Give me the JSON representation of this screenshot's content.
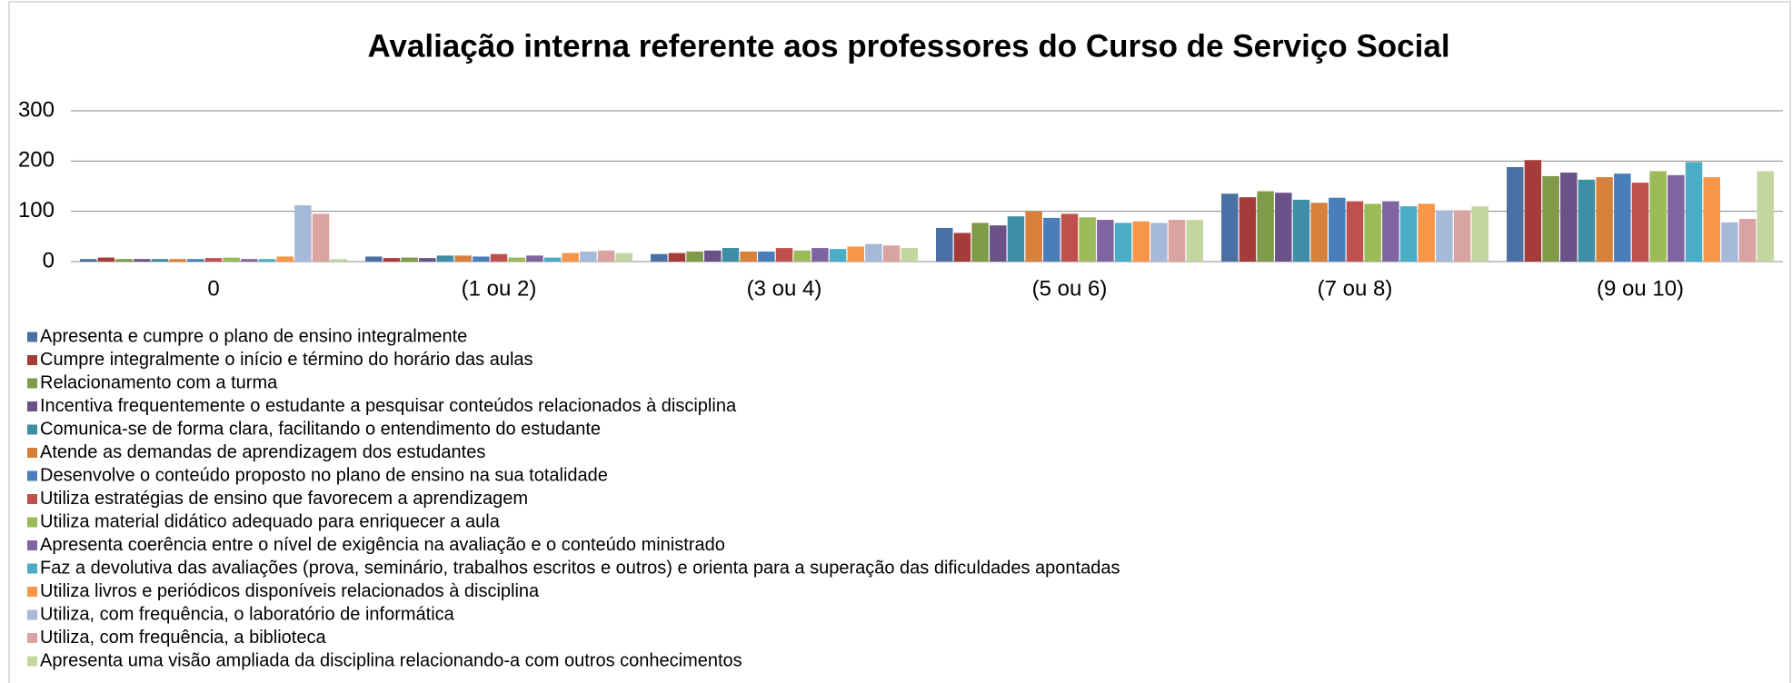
{
  "chart_data": {
    "type": "bar",
    "title": "Avaliação interna referente aos professores do Curso de Serviço Social",
    "categories": [
      "0",
      "(1 ou 2)",
      "(3 ou 4)",
      "(5 ou 6)",
      "(7 ou 8)",
      "(9 ou 10)"
    ],
    "ylim": [
      0,
      300
    ],
    "yticks": [
      0,
      100,
      200,
      300
    ],
    "grid": true,
    "legend": "bottom",
    "series": [
      {
        "name": "Apresenta e cumpre o plano de ensino integralmente",
        "color": "#4a6fa5",
        "values": [
          5,
          10,
          15,
          67,
          135,
          188
        ]
      },
      {
        "name": "Cumpre integralmente o início e término do horário das aulas",
        "color": "#a63c3a",
        "values": [
          8,
          7,
          17,
          57,
          128,
          202
        ]
      },
      {
        "name": "Relacionamento com a turma",
        "color": "#7f9a48",
        "values": [
          5,
          8,
          20,
          77,
          140,
          170
        ]
      },
      {
        "name": "Incentiva frequentemente o estudante a pesquisar conteúdos relacionados à disciplina",
        "color": "#6a5288",
        "values": [
          5,
          7,
          22,
          72,
          137,
          177
        ]
      },
      {
        "name": "Comunica-se de forma clara, facilitando o entendimento do estudante",
        "color": "#3d8ea6",
        "values": [
          5,
          12,
          27,
          90,
          123,
          163
        ]
      },
      {
        "name": "Atende as demandas de aprendizagem dos estudantes",
        "color": "#d6803a",
        "values": [
          5,
          12,
          20,
          100,
          117,
          168
        ]
      },
      {
        "name": "Desenvolve o conteúdo proposto no plano de ensino na sua totalidade",
        "color": "#4a7ebb",
        "values": [
          5,
          10,
          20,
          87,
          127,
          175
        ]
      },
      {
        "name": "Utiliza estratégias de ensino que favorecem a aprendizagem",
        "color": "#c0504d",
        "values": [
          7,
          15,
          27,
          95,
          120,
          157
        ]
      },
      {
        "name": "Utiliza material didático adequado para enriquecer a aula",
        "color": "#9bbb59",
        "values": [
          8,
          8,
          22,
          88,
          115,
          180
        ]
      },
      {
        "name": "Apresenta coerência entre o nível de exigência na avaliação e o conteúdo ministrado",
        "color": "#8064a2",
        "values": [
          5,
          12,
          27,
          83,
          120,
          172
        ]
      },
      {
        "name": "Faz a devolutiva das avaliações (prova, seminário, trabalhos escritos e outros) e orienta para a superação das dificuldades apontadas",
        "color": "#4bacc6",
        "values": [
          5,
          8,
          25,
          77,
          110,
          198
        ]
      },
      {
        "name": "Utiliza livros e periódicos disponíveis relacionados à disciplina",
        "color": "#f79646",
        "values": [
          10,
          17,
          30,
          80,
          115,
          168
        ]
      },
      {
        "name": "Utiliza, com frequência, o laboratório de informática",
        "color": "#a7b9d9",
        "values": [
          112,
          20,
          35,
          77,
          102,
          78
        ]
      },
      {
        "name": "Utiliza, com frequência, a biblioteca",
        "color": "#d9a3a2",
        "values": [
          95,
          22,
          32,
          83,
          102,
          85
        ]
      },
      {
        "name": "Apresenta uma visão ampliada da disciplina relacionando-a com outros conhecimentos",
        "color": "#c4d6a0",
        "values": [
          5,
          17,
          27,
          83,
          110,
          180
        ]
      }
    ]
  }
}
